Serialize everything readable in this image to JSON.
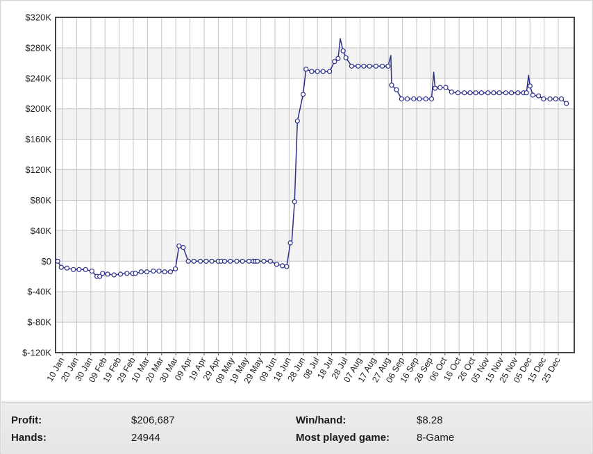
{
  "chart_data": {
    "type": "line",
    "title": "",
    "xlabel": "",
    "ylabel": "",
    "ylim": [
      -120000,
      320000
    ],
    "y_ticks": [
      320000,
      280000,
      240000,
      200000,
      160000,
      120000,
      80000,
      40000,
      0,
      -40000,
      -80000,
      -120000
    ],
    "y_tick_labels": [
      "$320K",
      "$280K",
      "$240K",
      "$200K",
      "$160K",
      "$120K",
      "$80K",
      "$40K",
      "$0",
      "$-40K",
      "$-80K",
      "$-120K"
    ],
    "x_tick_labels": [
      "10 Jan",
      "20 Jan",
      "30 Jan",
      "09 Feb",
      "19 Feb",
      "29 Feb",
      "10 Mar",
      "20 Mar",
      "30 Mar",
      "09 Apr",
      "19 Apr",
      "29 Apr",
      "09 May",
      "19 May",
      "29 May",
      "09 Jun",
      "18 Jun",
      "28 Jun",
      "08 Jul",
      "18 Jul",
      "28 Jul",
      "07 Aug",
      "17 Aug",
      "27 Aug",
      "06 Sep",
      "16 Sep",
      "26 Sep",
      "06 Oct",
      "16 Oct",
      "26 Oct",
      "05 Nov",
      "15 Nov",
      "25 Nov",
      "05 Dec",
      "15 Dec",
      "25 Dec"
    ],
    "grid": true,
    "line_color": "#2b2f86",
    "x_range_days": [
      -1.5,
      362
    ],
    "x_start_date": "01 Jan",
    "points": [
      [
        0,
        0
      ],
      [
        2.5,
        -8000
      ],
      [
        6.5,
        -9000
      ],
      [
        11,
        -11000
      ],
      [
        15,
        -11000
      ],
      [
        19.5,
        -11000
      ],
      [
        24,
        -13000
      ],
      [
        27.5,
        -20000
      ],
      [
        29.5,
        -20000
      ],
      [
        31.5,
        -16000
      ],
      [
        35,
        -17000
      ],
      [
        39.5,
        -18000
      ],
      [
        44,
        -17000
      ],
      [
        48.5,
        -16000
      ],
      [
        52.5,
        -16000
      ],
      [
        54.5,
        -16000
      ],
      [
        58.5,
        -14000
      ],
      [
        62.5,
        -14000
      ],
      [
        67,
        -13000
      ],
      [
        71,
        -13000
      ],
      [
        75,
        -14000
      ],
      [
        79,
        -14000
      ],
      [
        82.5,
        -10000
      ],
      [
        85,
        20000
      ],
      [
        88,
        18000
      ],
      [
        91.5,
        0
      ],
      [
        95.5,
        0
      ],
      [
        100,
        0
      ],
      [
        104,
        0
      ],
      [
        108,
        0
      ],
      [
        112.5,
        0
      ],
      [
        114.5,
        0
      ],
      [
        117,
        0
      ],
      [
        121,
        0
      ],
      [
        125.5,
        0
      ],
      [
        129.5,
        0
      ],
      [
        134,
        0
      ],
      [
        137,
        0
      ],
      [
        138.5,
        0
      ],
      [
        140,
        0
      ],
      [
        144.5,
        0
      ],
      [
        149,
        0
      ],
      [
        153.5,
        -4000
      ],
      [
        157.5,
        -6000
      ],
      [
        160.5,
        -7000
      ],
      [
        163,
        24000
      ],
      [
        166,
        78000
      ],
      [
        168,
        184000
      ],
      [
        172,
        219000
      ],
      [
        174,
        252000
      ],
      [
        178,
        249000
      ],
      [
        182,
        249000
      ],
      [
        186,
        249000
      ],
      [
        190.5,
        249000
      ],
      [
        194,
        262000
      ],
      [
        196.5,
        266000
      ],
      [
        200,
        276000
      ],
      [
        202,
        267000
      ],
      [
        206,
        256000
      ],
      [
        210.5,
        256000
      ],
      [
        214.5,
        256000
      ],
      [
        218.5,
        256000
      ],
      [
        223,
        256000
      ],
      [
        227.5,
        256000
      ],
      [
        231.5,
        256000
      ],
      [
        234,
        231000
      ],
      [
        237.5,
        225000
      ],
      [
        241,
        213000
      ],
      [
        245,
        213000
      ],
      [
        249.5,
        213000
      ],
      [
        253.5,
        213000
      ],
      [
        258,
        213000
      ],
      [
        262,
        213000
      ],
      [
        264.5,
        227000
      ],
      [
        268,
        228000
      ],
      [
        272,
        228000
      ],
      [
        276,
        222000
      ],
      [
        280.5,
        221000
      ],
      [
        285,
        221000
      ],
      [
        289,
        221000
      ],
      [
        293,
        221000
      ],
      [
        297,
        221000
      ],
      [
        301.5,
        221000
      ],
      [
        305.5,
        221000
      ],
      [
        309.5,
        221000
      ],
      [
        314,
        221000
      ],
      [
        318,
        221000
      ],
      [
        322.5,
        221000
      ],
      [
        326.5,
        221000
      ],
      [
        328.5,
        221000
      ],
      [
        331,
        230000
      ],
      [
        333,
        218000
      ],
      [
        337,
        217000
      ],
      [
        340.5,
        213000
      ],
      [
        345,
        213000
      ],
      [
        349,
        213000
      ],
      [
        353,
        213000
      ],
      [
        356.5,
        207000
      ]
    ],
    "peaks": [
      [
        85.5,
        20000
      ],
      [
        164,
        24000
      ],
      [
        198,
        292000
      ],
      [
        233.5,
        270000
      ],
      [
        263.5,
        248000
      ],
      [
        330,
        244000
      ]
    ]
  },
  "stats": {
    "profit_label": "Profit:",
    "profit_value": "$206,687",
    "hands_label": "Hands:",
    "hands_value": "24944",
    "win_per_hand_label": "Win/hand:",
    "win_per_hand_value": "$8.28",
    "most_played_label": "Most played game:",
    "most_played_value": "8-Game"
  }
}
